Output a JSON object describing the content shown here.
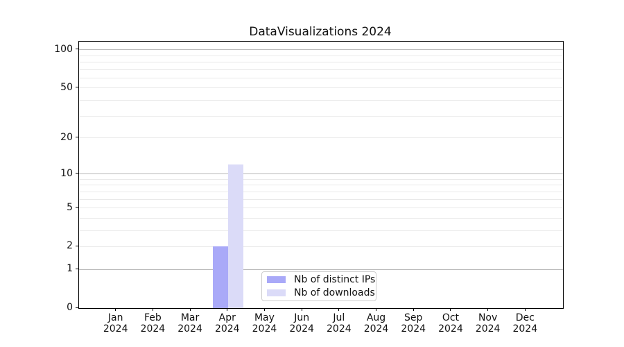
{
  "title": "DataVisualizations 2024",
  "chart_data": {
    "type": "bar",
    "title": "DataVisualizations 2024",
    "categories": [
      "Jan",
      "Feb",
      "Mar",
      "Apr",
      "May",
      "Jun",
      "Jul",
      "Aug",
      "Sep",
      "Oct",
      "Nov",
      "Dec"
    ],
    "x_tick_year": "2024",
    "series": [
      {
        "name": "Nb of distinct IPs",
        "color": "#a9a9f8",
        "values": [
          0,
          0,
          0,
          2,
          0,
          0,
          0,
          0,
          0,
          0,
          0,
          0
        ]
      },
      {
        "name": "Nb of downloads",
        "color": "#dbdbf8",
        "values": [
          0,
          0,
          0,
          12,
          0,
          0,
          0,
          0,
          0,
          0,
          0,
          0
        ]
      }
    ],
    "xlabel": "",
    "ylabel": "",
    "yscale": "log1p",
    "ylim": [
      0,
      116
    ],
    "xlim": [
      0,
      13
    ],
    "y_tick_values": [
      0,
      1,
      2,
      5,
      10,
      20,
      50,
      100
    ],
    "y_major_gridlines": [
      1,
      10,
      100
    ],
    "y_minor_gridlines": [
      2,
      3,
      4,
      5,
      6,
      7,
      8,
      9,
      20,
      30,
      40,
      50,
      60,
      70,
      80,
      90
    ],
    "grid": true,
    "legend_position": "lower-center"
  }
}
